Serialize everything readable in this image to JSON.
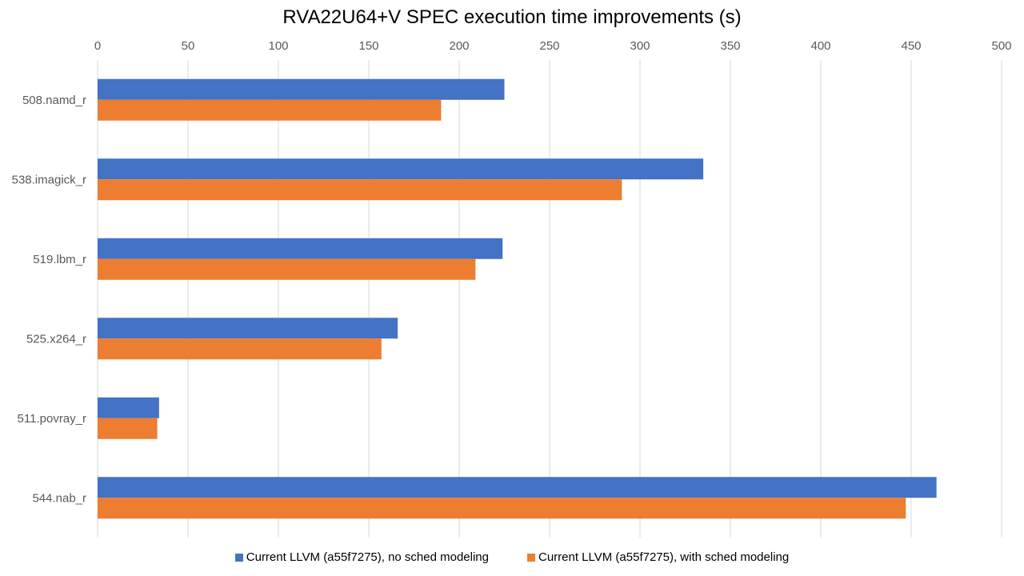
{
  "chart_data": {
    "type": "bar",
    "orientation": "horizontal",
    "title": "RVA22U64+V SPEC execution time improvements (s)",
    "xlabel": "",
    "ylabel": "",
    "xlim": [
      0,
      500
    ],
    "x_ticks": [
      "0",
      "50",
      "100",
      "150",
      "200",
      "250",
      "300",
      "350",
      "400",
      "450",
      "500"
    ],
    "x_axis_position": "top",
    "grid": true,
    "legend_position": "bottom",
    "categories": [
      "508.namd_r",
      "538.imagick_r",
      "519.lbm_r",
      "525.x264_r",
      "511.povray_r",
      "544.nab_r"
    ],
    "series": [
      {
        "name": "Current LLVM (a55f7275), no sched modeling",
        "color": "#4472C4",
        "values": [
          225,
          335,
          224,
          166,
          34,
          464
        ]
      },
      {
        "name": "Current LLVM (a55f7275), with sched modeling",
        "color": "#ED7D31",
        "values": [
          190,
          290,
          209,
          157,
          33,
          447
        ]
      }
    ]
  }
}
